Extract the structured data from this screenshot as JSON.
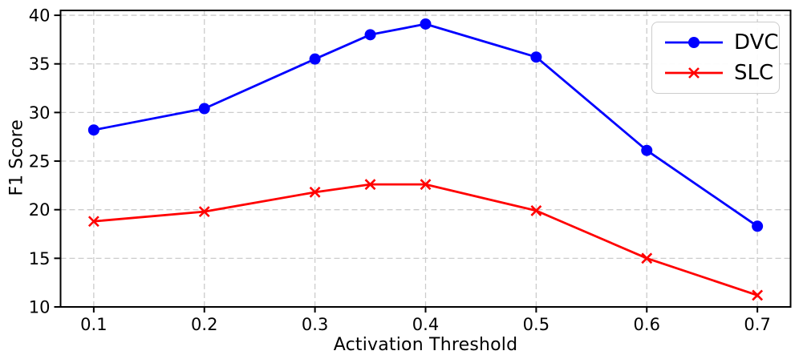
{
  "chart_data": {
    "type": "line",
    "x": [
      0.1,
      0.2,
      0.3,
      0.35,
      0.4,
      0.5,
      0.6,
      0.7
    ],
    "series": [
      {
        "name": "DVC",
        "color": "#0000ff",
        "marker": "circle",
        "values": [
          28.2,
          30.4,
          35.5,
          38.0,
          39.1,
          35.7,
          26.1,
          18.3
        ]
      },
      {
        "name": "SLC",
        "color": "#ff0000",
        "marker": "x",
        "values": [
          18.8,
          19.8,
          21.8,
          22.6,
          22.6,
          19.9,
          15.0,
          11.2
        ]
      }
    ],
    "title": "",
    "xlabel": "Activation Threshold",
    "ylabel": "F1 Score",
    "x_ticks": [
      0.1,
      0.2,
      0.3,
      0.4,
      0.5,
      0.6,
      0.7
    ],
    "y_ticks": [
      10,
      15,
      20,
      25,
      30,
      35,
      40
    ],
    "xlim": [
      0.07,
      0.73
    ],
    "ylim": [
      10,
      40.5
    ],
    "grid": true,
    "grid_color": "#cccccc",
    "spine_color": "#000000",
    "legend_position": "upper right"
  }
}
